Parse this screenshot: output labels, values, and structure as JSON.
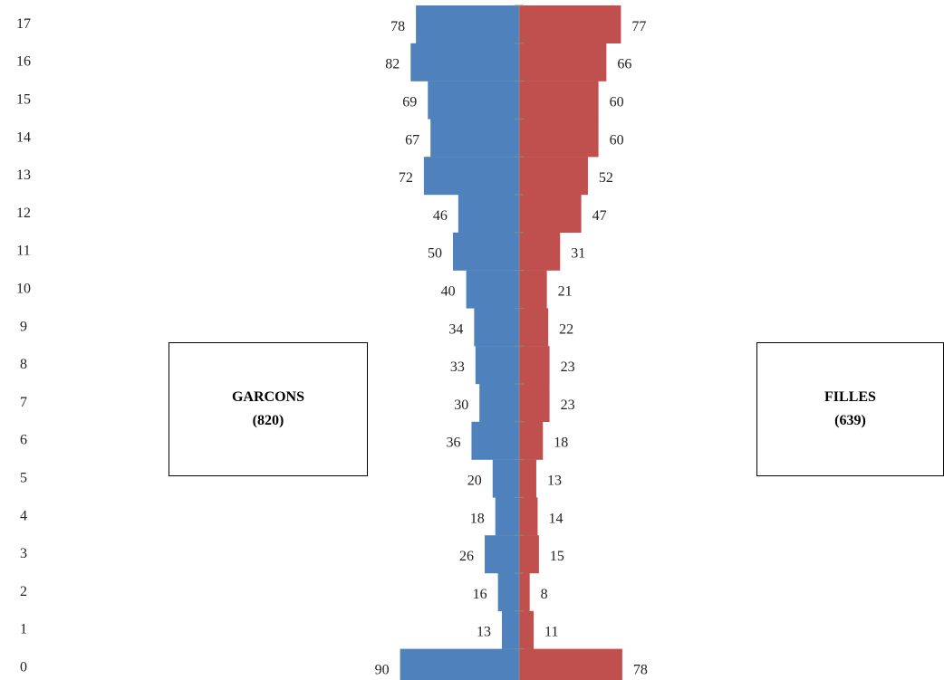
{
  "chart_data": {
    "type": "bar",
    "subtype": "population-pyramid",
    "categories": [
      "0",
      "1",
      "2",
      "3",
      "4",
      "5",
      "6",
      "7",
      "8",
      "9",
      "10",
      "11",
      "12",
      "13",
      "14",
      "15",
      "16",
      "17"
    ],
    "series": [
      {
        "name": "GARCONS",
        "side": "left",
        "color": "#4f81bd",
        "values": [
          90,
          13,
          16,
          26,
          18,
          20,
          36,
          30,
          33,
          34,
          40,
          50,
          46,
          72,
          67,
          69,
          82,
          78
        ]
      },
      {
        "name": "FILLES",
        "side": "right",
        "color": "#c0504d",
        "values": [
          78,
          11,
          8,
          15,
          14,
          13,
          18,
          23,
          23,
          22,
          21,
          31,
          47,
          52,
          60,
          60,
          66,
          77
        ]
      }
    ],
    "title": "",
    "xlabel": "",
    "ylabel": "",
    "grid": false
  },
  "legend": {
    "boys": {
      "label": "GARCONS",
      "total": "(820)"
    },
    "girls": {
      "label": "FILLES",
      "total": "(639)"
    }
  },
  "colors": {
    "boys": "#4f81bd",
    "girls": "#c0504d",
    "axis": "#8a8a8a"
  }
}
